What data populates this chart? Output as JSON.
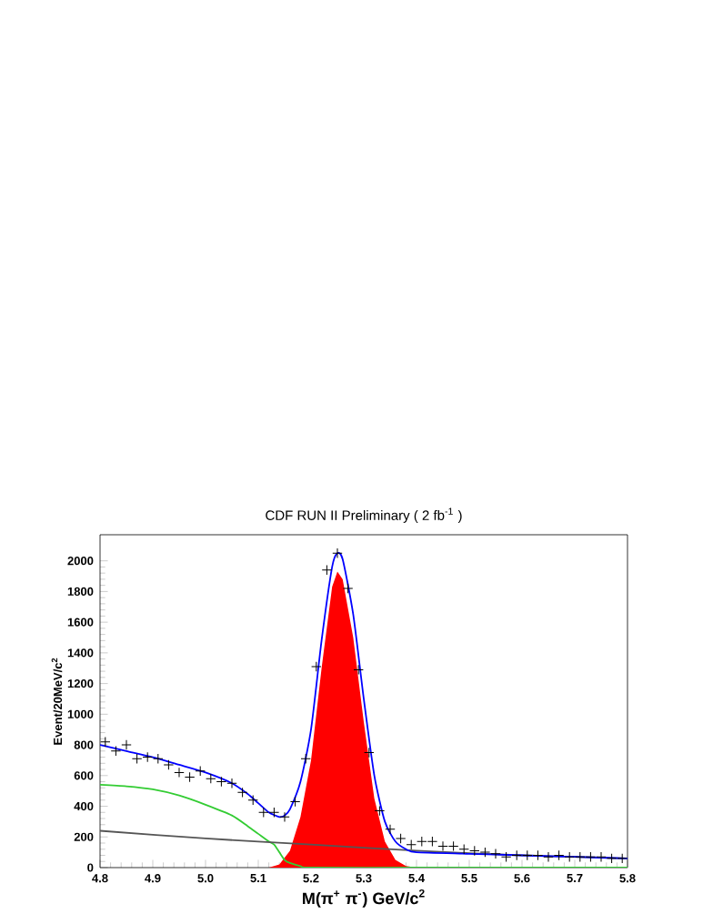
{
  "chart_data": {
    "type": "scatter",
    "title": "CDF RUN II Preliminary  ( 2 fb$^{-1}$ )",
    "xlabel": "M(π$^{+}$ π$^{-}$)    GeV/c$^{2}$",
    "ylabel": "Event/20MeV/c$^{2}$",
    "xlim": [
      4.8,
      5.8
    ],
    "ylim": [
      0,
      2170
    ],
    "xticks": [
      4.8,
      4.9,
      {
        "value": 5.0,
        "label": "5.0"
      },
      5.1,
      5.2,
      5.3,
      5.4,
      5.5,
      5.6,
      5.7,
      5.8
    ],
    "yticks": [
      0,
      200,
      400,
      600,
      800,
      1000,
      1200,
      1400,
      1600,
      1800,
      2000
    ],
    "series": [
      {
        "type": "area",
        "color": "#ff0000",
        "x": [
          5.1,
          5.12,
          5.14,
          5.16,
          5.18,
          5.2,
          5.22,
          5.24,
          5.25,
          5.26,
          5.28,
          5.3,
          5.32,
          5.34,
          5.36,
          5.38,
          5.4
        ],
        "values": [
          0,
          0,
          20,
          110,
          330,
          700,
          1300,
          1830,
          1930,
          1880,
          1500,
          950,
          450,
          170,
          50,
          10,
          0
        ]
      },
      {
        "type": "line",
        "color": "#33cc33",
        "x": [
          4.8,
          4.85,
          4.9,
          4.95,
          5.0,
          5.05,
          5.08,
          5.1,
          5.12,
          5.13,
          5.14,
          5.15,
          5.16,
          5.18,
          5.2,
          5.4,
          5.6,
          5.8
        ],
        "values": [
          540,
          530,
          510,
          470,
          410,
          340,
          270,
          220,
          170,
          150,
          100,
          50,
          30,
          10,
          0,
          0,
          0,
          0
        ]
      },
      {
        "type": "line",
        "color": "#555555",
        "x": [
          4.8,
          5.0,
          5.2,
          5.4,
          5.6,
          5.8
        ],
        "values": [
          240,
          190,
          150,
          110,
          80,
          60
        ]
      },
      {
        "type": "line",
        "color": "#0000ff",
        "x": [
          4.8,
          4.85,
          4.9,
          4.95,
          5.0,
          5.05,
          5.08,
          5.1,
          5.12,
          5.14,
          5.15,
          5.16,
          5.18,
          5.2,
          5.22,
          5.24,
          5.25,
          5.26,
          5.28,
          5.3,
          5.32,
          5.34,
          5.36,
          5.38,
          5.4,
          5.5,
          5.6,
          5.7,
          5.8
        ],
        "values": [
          800,
          760,
          720,
          670,
          620,
          550,
          480,
          420,
          360,
          330,
          340,
          380,
          560,
          900,
          1480,
          1960,
          2050,
          2010,
          1650,
          1100,
          600,
          300,
          170,
          120,
          100,
          90,
          80,
          70,
          60
        ]
      },
      {
        "color": "#000000",
        "marker": "cross",
        "x": [
          4.81,
          4.83,
          4.85,
          4.87,
          4.89,
          4.91,
          4.93,
          4.95,
          4.97,
          4.99,
          5.01,
          5.03,
          5.05,
          5.07,
          5.09,
          5.11,
          5.13,
          5.15,
          5.17,
          5.19,
          5.21,
          5.23,
          5.25,
          5.27,
          5.29,
          5.31,
          5.33,
          5.35,
          5.37,
          5.39,
          5.41,
          5.43,
          5.45,
          5.47,
          5.49,
          5.51,
          5.53,
          5.55,
          5.57,
          5.59,
          5.61,
          5.63,
          5.65,
          5.67,
          5.69,
          5.71,
          5.73,
          5.75,
          5.77,
          5.79
        ],
        "values": [
          820,
          760,
          800,
          710,
          720,
          710,
          670,
          620,
          590,
          630,
          580,
          560,
          550,
          490,
          440,
          360,
          360,
          330,
          430,
          710,
          1310,
          1940,
          2050,
          1820,
          1290,
          750,
          370,
          250,
          190,
          150,
          170,
          170,
          140,
          140,
          120,
          110,
          100,
          90,
          70,
          80,
          80,
          80,
          70,
          80,
          70,
          70,
          70,
          70,
          60,
          60
        ]
      }
    ]
  }
}
